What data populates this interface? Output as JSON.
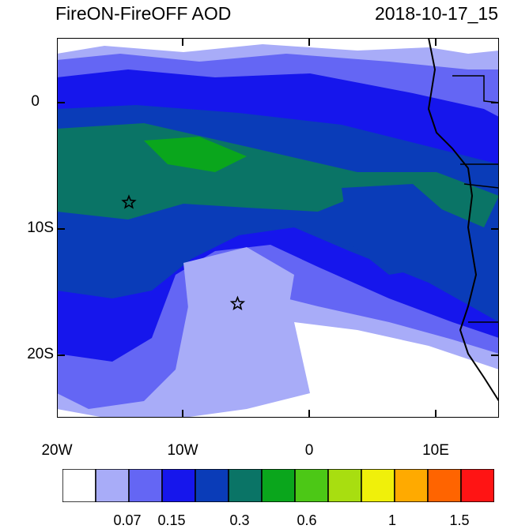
{
  "title": "FireON-FireOFF AOD",
  "datetime": "2018-10-17_15",
  "y_ticks": [
    "0",
    "10S",
    "20S"
  ],
  "x_ticks": [
    "20W",
    "10W",
    "0",
    "10E"
  ],
  "colorbar": {
    "colors": [
      "#ffffff",
      "#a8acf8",
      "#6466f4",
      "#1616ec",
      "#0a3cb8",
      "#0a7466",
      "#0aa61c",
      "#4cc816",
      "#a8de10",
      "#f0f00a",
      "#ffaa00",
      "#ff6400",
      "#ff1414"
    ],
    "labels": [
      "0.07",
      "0.15",
      "0.3",
      "0.6",
      "1",
      "1.5"
    ]
  },
  "markers": [
    {
      "label": "star",
      "lon": -14.3,
      "lat": -8.0
    },
    {
      "label": "star",
      "lon": -5.7,
      "lat": -16.0
    }
  ]
}
